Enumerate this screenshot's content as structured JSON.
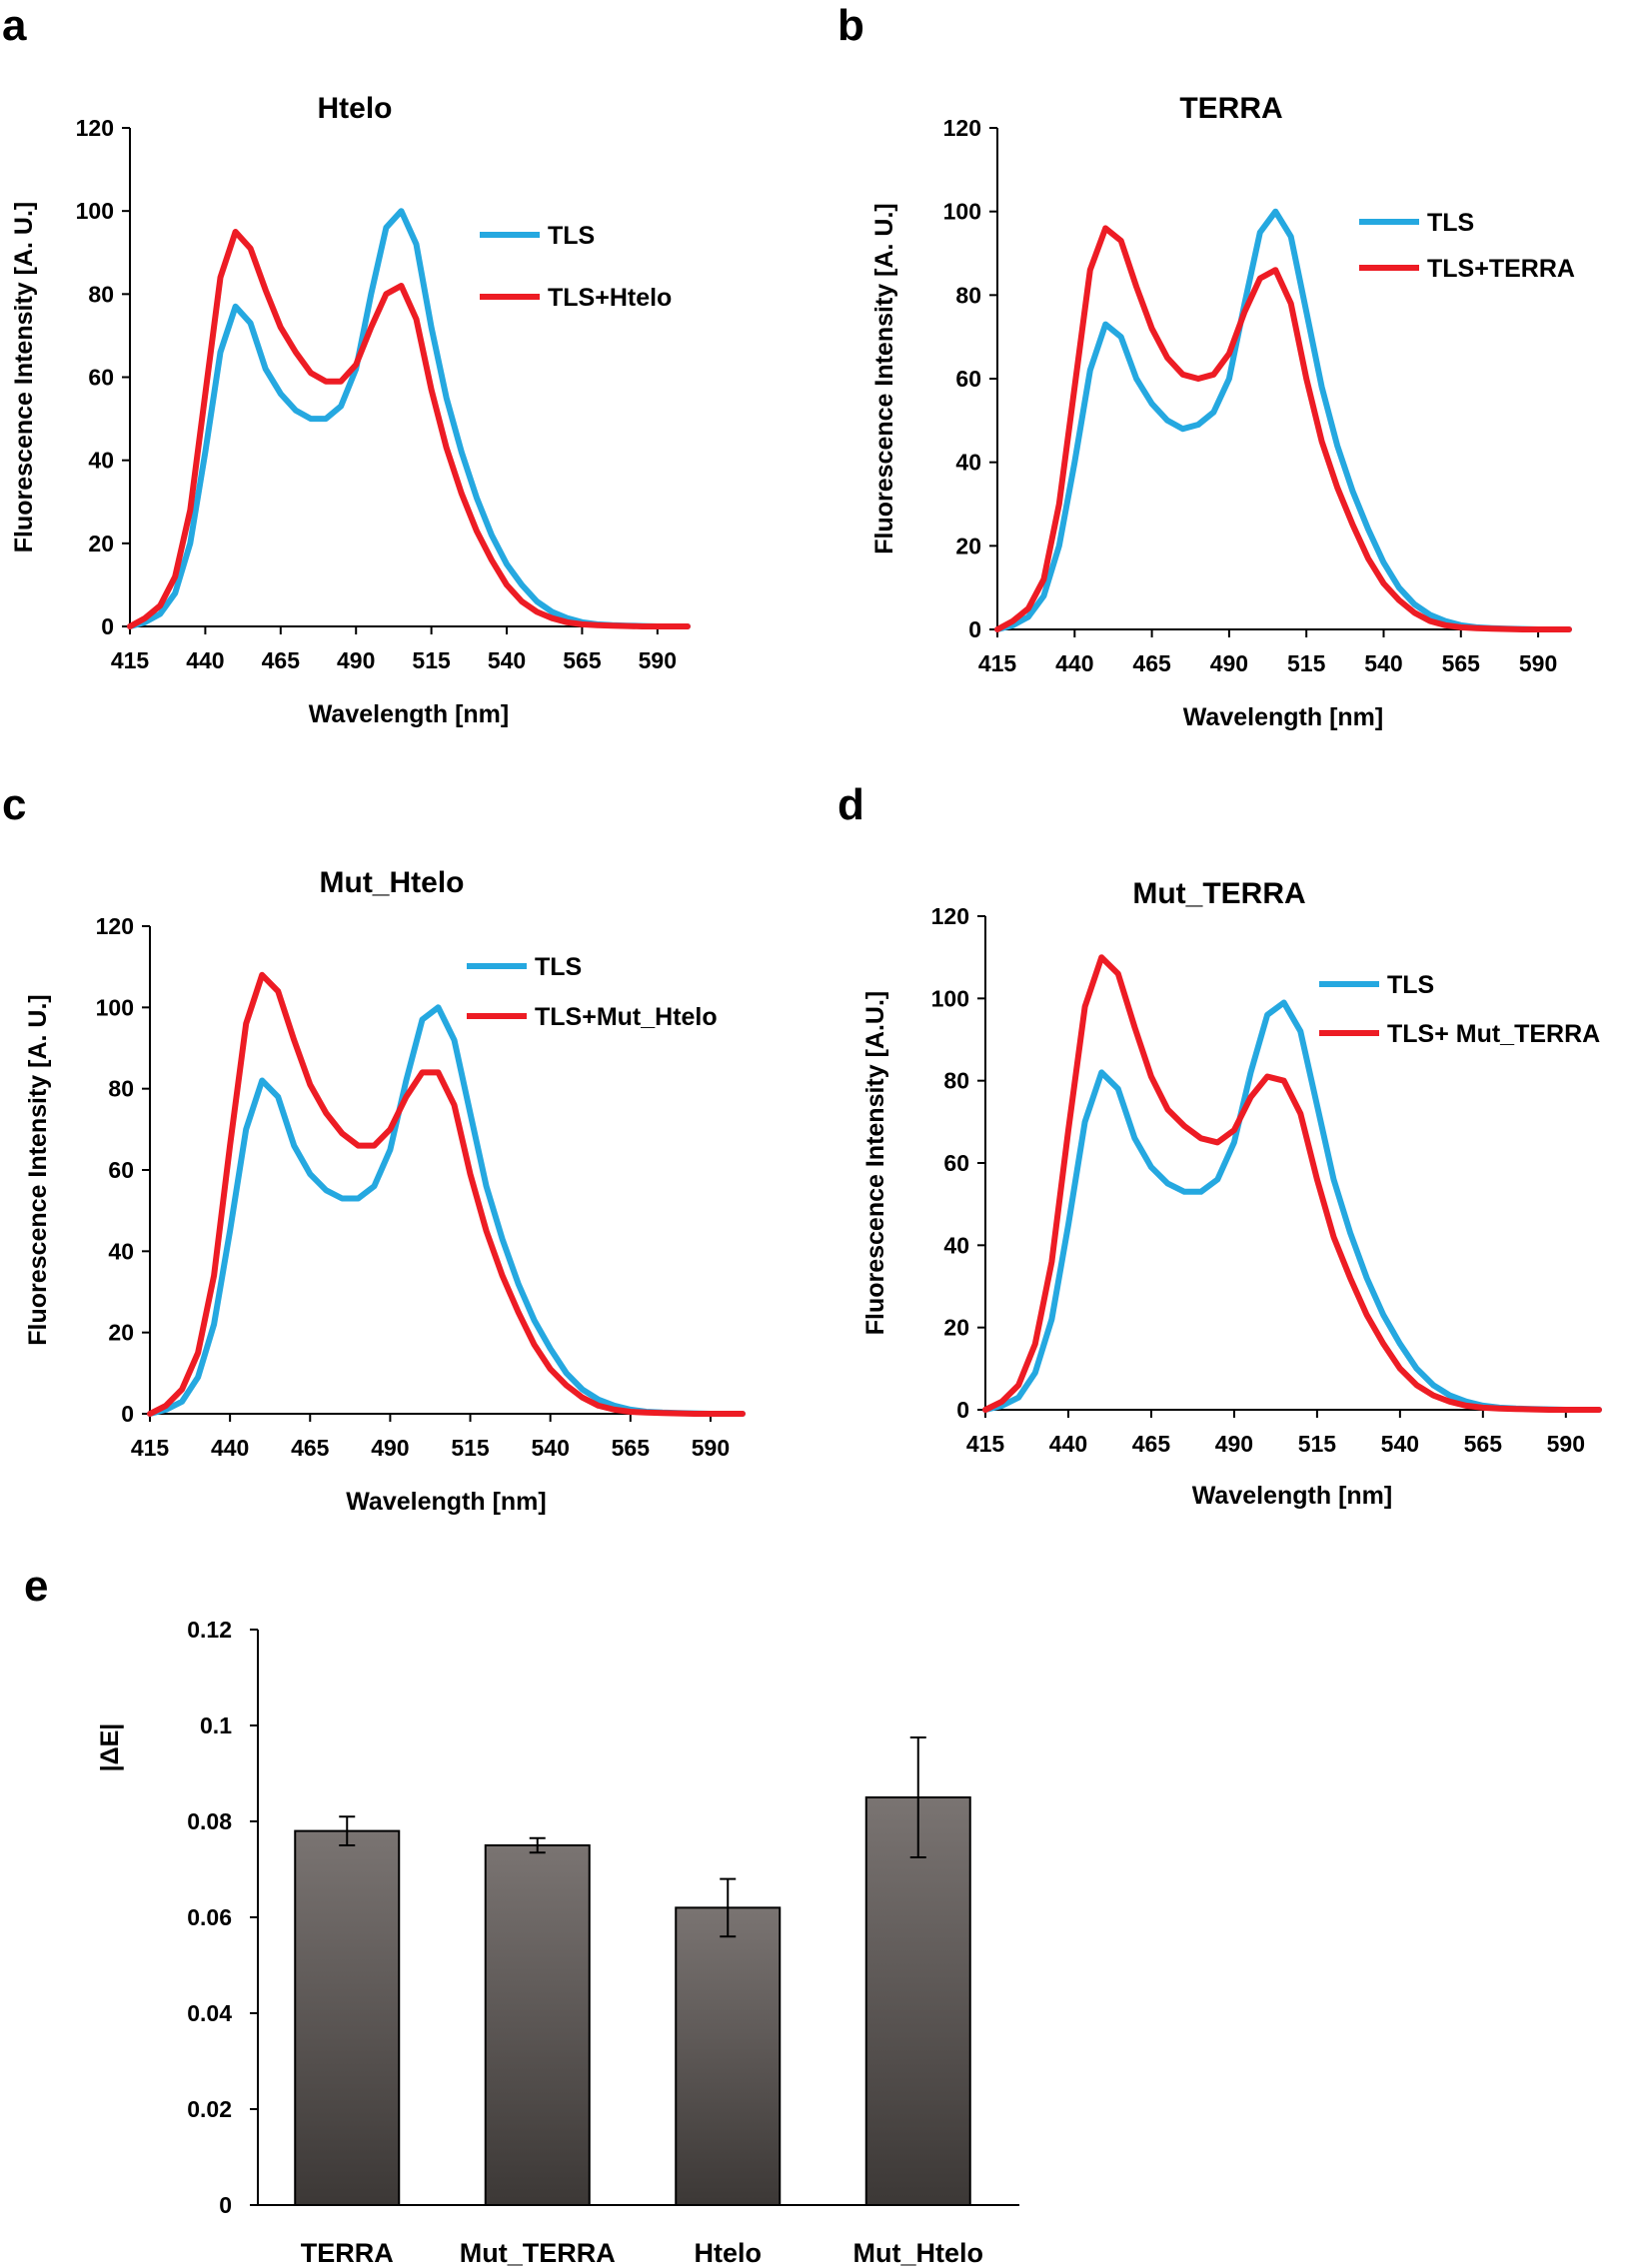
{
  "panels": {
    "a": "a",
    "b": "b",
    "c": "c",
    "d": "d",
    "e": "e"
  },
  "colors": {
    "tls": "#25a8e0",
    "complex": "#ed1c24",
    "bar_top": "#7a7472",
    "bar_bottom": "#3c3836"
  },
  "chart_data": [
    {
      "id": "a",
      "type": "line",
      "title": "Htelo",
      "xlabel": "Wavelength [nm]",
      "ylabel": "Fluorescence Intensity [A. U.]",
      "xlim": [
        415,
        600
      ],
      "ylim": [
        0,
        120
      ],
      "xticks": [
        "415",
        "440",
        "465",
        "490",
        "515",
        "540",
        "565",
        "590"
      ],
      "yticks": [
        "0",
        "20",
        "40",
        "60",
        "80",
        "100",
        "120"
      ],
      "series": [
        {
          "name": "TLS",
          "x": [
            415,
            420,
            425,
            430,
            435,
            440,
            445,
            450,
            455,
            460,
            465,
            470,
            475,
            480,
            485,
            490,
            495,
            500,
            505,
            510,
            515,
            520,
            525,
            530,
            535,
            540,
            545,
            550,
            555,
            560,
            565,
            570,
            575,
            580,
            585,
            590,
            595,
            600
          ],
          "values": [
            0,
            1,
            3,
            8,
            20,
            42,
            66,
            77,
            73,
            62,
            56,
            52,
            50,
            50,
            53,
            62,
            80,
            96,
            100,
            92,
            72,
            55,
            42,
            31,
            22,
            15,
            10,
            6,
            3.5,
            2,
            1,
            0.5,
            0.3,
            0.2,
            0.1,
            0,
            0,
            0
          ]
        },
        {
          "name": "TLS+Htelo",
          "x": [
            415,
            420,
            425,
            430,
            435,
            440,
            445,
            450,
            455,
            460,
            465,
            470,
            475,
            480,
            485,
            490,
            495,
            500,
            505,
            510,
            515,
            520,
            525,
            530,
            535,
            540,
            545,
            550,
            555,
            560,
            565,
            570,
            575,
            580,
            585,
            590,
            595,
            600
          ],
          "values": [
            0,
            2,
            5,
            12,
            28,
            56,
            84,
            95,
            91,
            81,
            72,
            66,
            61,
            59,
            59,
            63,
            72,
            80,
            82,
            74,
            57,
            43,
            32,
            23,
            16,
            10,
            6,
            3.5,
            2,
            1,
            0.5,
            0.3,
            0.2,
            0.1,
            0,
            0,
            0,
            0
          ]
        }
      ]
    },
    {
      "id": "b",
      "type": "line",
      "title": "TERRA",
      "xlabel": "Wavelength [nm]",
      "ylabel": "Fluorescence Intensity [A. U.]",
      "xlim": [
        415,
        600
      ],
      "ylim": [
        0,
        120
      ],
      "xticks": [
        "415",
        "440",
        "465",
        "490",
        "515",
        "540",
        "565",
        "590"
      ],
      "yticks": [
        "0",
        "20",
        "40",
        "60",
        "80",
        "100",
        "120"
      ],
      "series": [
        {
          "name": "TLS",
          "x": [
            415,
            420,
            425,
            430,
            435,
            440,
            445,
            450,
            455,
            460,
            465,
            470,
            475,
            480,
            485,
            490,
            495,
            500,
            505,
            510,
            515,
            520,
            525,
            530,
            535,
            540,
            545,
            550,
            555,
            560,
            565,
            570,
            575,
            580,
            585,
            590,
            595,
            600
          ],
          "values": [
            0,
            1,
            3,
            8,
            20,
            40,
            62,
            73,
            70,
            60,
            54,
            50,
            48,
            49,
            52,
            60,
            78,
            95,
            100,
            94,
            76,
            58,
            44,
            33,
            24,
            16,
            10,
            6,
            3.5,
            2,
            1,
            0.5,
            0.3,
            0.2,
            0.1,
            0,
            0,
            0
          ]
        },
        {
          "name": "TLS+TERRA",
          "x": [
            415,
            420,
            425,
            430,
            435,
            440,
            445,
            450,
            455,
            460,
            465,
            470,
            475,
            480,
            485,
            490,
            495,
            500,
            505,
            510,
            515,
            520,
            525,
            530,
            535,
            540,
            545,
            550,
            555,
            560,
            565,
            570,
            575,
            580,
            585,
            590,
            595,
            600
          ],
          "values": [
            0,
            2,
            5,
            12,
            30,
            58,
            86,
            96,
            93,
            82,
            72,
            65,
            61,
            60,
            61,
            66,
            76,
            84,
            86,
            78,
            60,
            45,
            34,
            25,
            17,
            11,
            7,
            4,
            2,
            1,
            0.5,
            0.3,
            0.2,
            0.1,
            0,
            0,
            0,
            0
          ]
        }
      ]
    },
    {
      "id": "c",
      "type": "line",
      "title": "Mut_Htelo",
      "xlabel": "Wavelength [nm]",
      "ylabel": "Fluorescence Intensity [A. U.]",
      "xlim": [
        415,
        600
      ],
      "ylim": [
        0,
        120
      ],
      "xticks": [
        "415",
        "440",
        "465",
        "490",
        "515",
        "540",
        "565",
        "590"
      ],
      "yticks": [
        "0",
        "20",
        "40",
        "60",
        "80",
        "100",
        "120"
      ],
      "series": [
        {
          "name": "TLS",
          "x": [
            415,
            420,
            425,
            430,
            435,
            440,
            445,
            450,
            455,
            460,
            465,
            470,
            475,
            480,
            485,
            490,
            495,
            500,
            505,
            510,
            515,
            520,
            525,
            530,
            535,
            540,
            545,
            550,
            555,
            560,
            565,
            570,
            575,
            580,
            585,
            590,
            595,
            600
          ],
          "values": [
            0,
            1,
            3,
            9,
            22,
            45,
            70,
            82,
            78,
            66,
            59,
            55,
            53,
            53,
            56,
            65,
            82,
            97,
            100,
            92,
            74,
            56,
            43,
            32,
            23,
            16,
            10,
            6,
            3.5,
            2,
            1,
            0.5,
            0.3,
            0.2,
            0.1,
            0,
            0,
            0
          ]
        },
        {
          "name": "TLS+Mut_Htelo",
          "x": [
            415,
            420,
            425,
            430,
            435,
            440,
            445,
            450,
            455,
            460,
            465,
            470,
            475,
            480,
            485,
            490,
            495,
            500,
            505,
            510,
            515,
            520,
            525,
            530,
            535,
            540,
            545,
            550,
            555,
            560,
            565,
            570,
            575,
            580,
            585,
            590,
            595,
            600
          ],
          "values": [
            0,
            2,
            6,
            15,
            34,
            66,
            96,
            108,
            104,
            92,
            81,
            74,
            69,
            66,
            66,
            70,
            78,
            84,
            84,
            76,
            59,
            45,
            34,
            25,
            17,
            11,
            7,
            4,
            2,
            1,
            0.5,
            0.3,
            0.2,
            0.1,
            0,
            0,
            0,
            0
          ]
        }
      ]
    },
    {
      "id": "d",
      "type": "line",
      "title": "Mut_TERRA",
      "xlabel": "Wavelength [nm]",
      "ylabel": "Fluorescence Intensity [A.U.]",
      "xlim": [
        415,
        600
      ],
      "ylim": [
        0,
        120
      ],
      "xticks": [
        "415",
        "440",
        "465",
        "490",
        "515",
        "540",
        "565",
        "590"
      ],
      "yticks": [
        "0",
        "20",
        "40",
        "60",
        "80",
        "100",
        "120"
      ],
      "series": [
        {
          "name": "TLS",
          "x": [
            415,
            420,
            425,
            430,
            435,
            440,
            445,
            450,
            455,
            460,
            465,
            470,
            475,
            480,
            485,
            490,
            495,
            500,
            505,
            510,
            515,
            520,
            525,
            530,
            535,
            540,
            545,
            550,
            555,
            560,
            565,
            570,
            575,
            580,
            585,
            590,
            595,
            600
          ],
          "values": [
            0,
            1,
            3,
            9,
            22,
            45,
            70,
            82,
            78,
            66,
            59,
            55,
            53,
            53,
            56,
            65,
            82,
            96,
            99,
            92,
            74,
            56,
            43,
            32,
            23,
            16,
            10,
            6,
            3.5,
            2,
            1,
            0.5,
            0.3,
            0.2,
            0.1,
            0,
            0,
            0
          ]
        },
        {
          "name": "TLS+ Mut_TERRA",
          "x": [
            415,
            420,
            425,
            430,
            435,
            440,
            445,
            450,
            455,
            460,
            465,
            470,
            475,
            480,
            485,
            490,
            495,
            500,
            505,
            510,
            515,
            520,
            525,
            530,
            535,
            540,
            545,
            550,
            555,
            560,
            565,
            570,
            575,
            580,
            585,
            590,
            595,
            600
          ],
          "values": [
            0,
            2,
            6,
            16,
            36,
            68,
            98,
            110,
            106,
            93,
            81,
            73,
            69,
            66,
            65,
            68,
            76,
            81,
            80,
            72,
            56,
            42,
            32,
            23,
            16,
            10,
            6,
            3.5,
            2,
            1,
            0.5,
            0.3,
            0.2,
            0.1,
            0,
            0,
            0,
            0
          ]
        }
      ]
    },
    {
      "id": "e",
      "type": "bar",
      "title": "",
      "xlabel": "",
      "ylabel": "|ΔE|",
      "ylim": [
        0,
        0.12
      ],
      "yticks": [
        "0",
        "0.02",
        "0.04",
        "0.06",
        "0.08",
        "0.1",
        "0.12"
      ],
      "categories": [
        "TERRA",
        "Mut_TERRA",
        "Htelo",
        "Mut_Htelo"
      ],
      "values": [
        0.078,
        0.075,
        0.062,
        0.085
      ],
      "errors": [
        0.003,
        0.0015,
        0.006,
        0.0125
      ]
    }
  ]
}
